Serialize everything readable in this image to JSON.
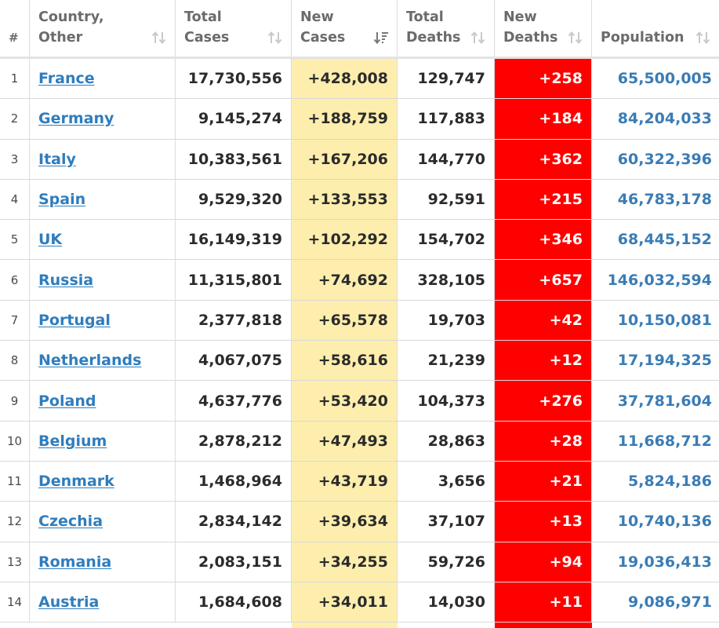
{
  "colors": {
    "new_cases_bg": "#fdeeae",
    "new_deaths_bg": "#ff0000",
    "link": "#2f7dbd",
    "population": "#3a7cb5"
  },
  "header": {
    "index": "#",
    "country_line1": "Country,",
    "country_line2": "Other",
    "total_cases_line1": "Total",
    "total_cases_line2": "Cases",
    "new_cases_line1": "New",
    "new_cases_line2": "Cases",
    "total_deaths_line1": "Total",
    "total_deaths_line2": "Deaths",
    "new_deaths_line1": "New",
    "new_deaths_line2": "Deaths",
    "population": "Population",
    "sort_icon": "sort-updown-icon",
    "active_sort_icon": "sort-descending-icon"
  },
  "rows": [
    {
      "index": "1",
      "country": "France",
      "total_cases": "17,730,556",
      "new_cases": "+428,008",
      "total_deaths": "129,747",
      "new_deaths": "+258",
      "population": "65,500,005"
    },
    {
      "index": "2",
      "country": "Germany",
      "total_cases": "9,145,274",
      "new_cases": "+188,759",
      "total_deaths": "117,883",
      "new_deaths": "+184",
      "population": "84,204,033"
    },
    {
      "index": "3",
      "country": "Italy",
      "total_cases": "10,383,561",
      "new_cases": "+167,206",
      "total_deaths": "144,770",
      "new_deaths": "+362",
      "population": "60,322,396"
    },
    {
      "index": "4",
      "country": "Spain",
      "total_cases": "9,529,320",
      "new_cases": "+133,553",
      "total_deaths": "92,591",
      "new_deaths": "+215",
      "population": "46,783,178"
    },
    {
      "index": "5",
      "country": "UK",
      "total_cases": "16,149,319",
      "new_cases": "+102,292",
      "total_deaths": "154,702",
      "new_deaths": "+346",
      "population": "68,445,152"
    },
    {
      "index": "6",
      "country": "Russia",
      "total_cases": "11,315,801",
      "new_cases": "+74,692",
      "total_deaths": "328,105",
      "new_deaths": "+657",
      "population": "146,032,594"
    },
    {
      "index": "7",
      "country": "Portugal",
      "total_cases": "2,377,818",
      "new_cases": "+65,578",
      "total_deaths": "19,703",
      "new_deaths": "+42",
      "population": "10,150,081"
    },
    {
      "index": "8",
      "country": "Netherlands",
      "total_cases": "4,067,075",
      "new_cases": "+58,616",
      "total_deaths": "21,239",
      "new_deaths": "+12",
      "population": "17,194,325"
    },
    {
      "index": "9",
      "country": "Poland",
      "total_cases": "4,637,776",
      "new_cases": "+53,420",
      "total_deaths": "104,373",
      "new_deaths": "+276",
      "population": "37,781,604"
    },
    {
      "index": "10",
      "country": "Belgium",
      "total_cases": "2,878,212",
      "new_cases": "+47,493",
      "total_deaths": "28,863",
      "new_deaths": "+28",
      "population": "11,668,712"
    },
    {
      "index": "11",
      "country": "Denmark",
      "total_cases": "1,468,964",
      "new_cases": "+43,719",
      "total_deaths": "3,656",
      "new_deaths": "+21",
      "population": "5,824,186"
    },
    {
      "index": "12",
      "country": "Czechia",
      "total_cases": "2,834,142",
      "new_cases": "+39,634",
      "total_deaths": "37,107",
      "new_deaths": "+13",
      "population": "10,740,136"
    },
    {
      "index": "13",
      "country": "Romania",
      "total_cases": "2,083,151",
      "new_cases": "+34,255",
      "total_deaths": "59,726",
      "new_deaths": "+94",
      "population": "19,036,413"
    },
    {
      "index": "14",
      "country": "Austria",
      "total_cases": "1,684,608",
      "new_cases": "+34,011",
      "total_deaths": "14,030",
      "new_deaths": "+11",
      "population": "9,086,971"
    }
  ]
}
